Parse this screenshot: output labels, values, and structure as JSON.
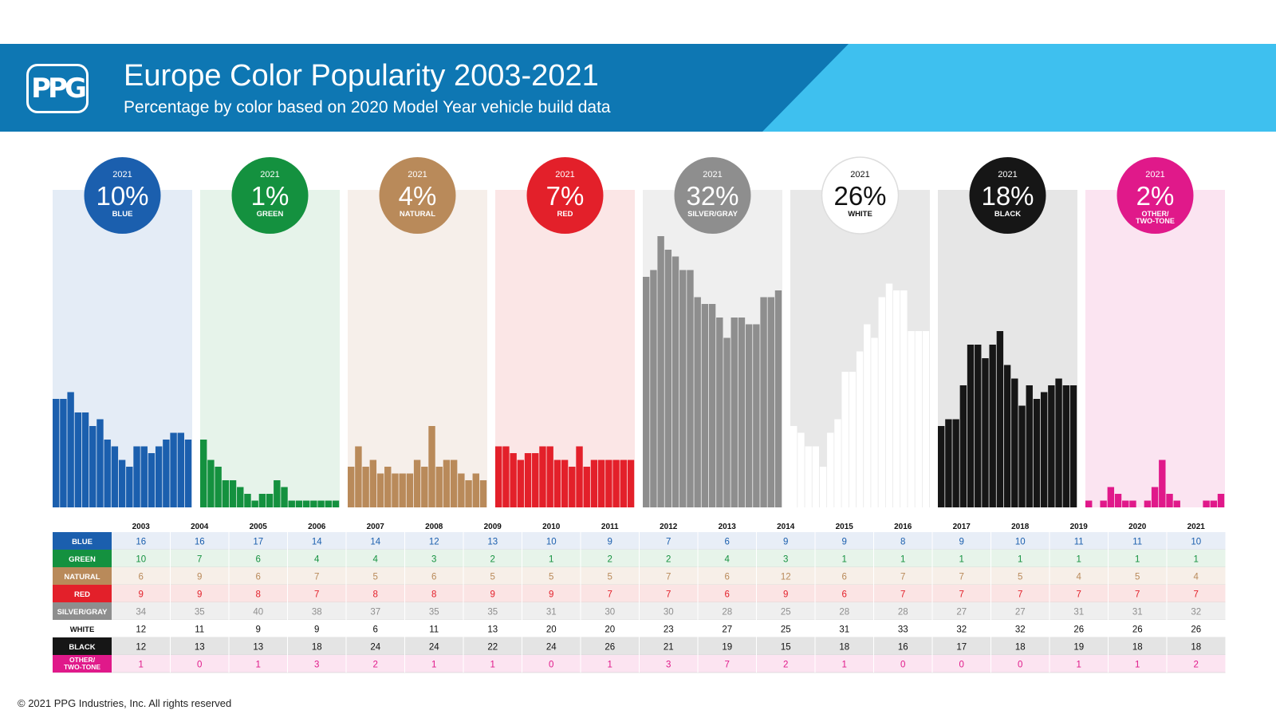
{
  "header": {
    "logo_text": "PPG",
    "title": "Europe Color Popularity 2003-2021",
    "subtitle": "Percentage by color based on 2020 Model Year vehicle build data"
  },
  "footer": {
    "copyright": "© 2021 PPG Industries, Inc. All rights reserved"
  },
  "colors": {
    "banner_dark": "#0e77b3",
    "banner_light": "#3ec0ef"
  },
  "chart_data": {
    "type": "bar",
    "title": "Europe Color Popularity 2003-2021",
    "subtitle": "Percentage by color based on 2020 Model Year vehicle build data",
    "categories": [
      "2003",
      "2004",
      "2005",
      "2006",
      "2007",
      "2008",
      "2009",
      "2010",
      "2011",
      "2012",
      "2013",
      "2014",
      "2015",
      "2016",
      "2017",
      "2018",
      "2019",
      "2020",
      "2021"
    ],
    "ylim": [
      0,
      40
    ],
    "series": [
      {
        "name": "BLUE",
        "badge_year": "2021",
        "badge_value": "10%",
        "badge_label": "BLUE",
        "color": "#1b5fae",
        "panel": "#e4ecf6",
        "text_color": "#1b5fae",
        "label_text_color": "#ffffff",
        "row_bg": "#e8eef7",
        "values": [
          16,
          16,
          17,
          14,
          14,
          12,
          13,
          10,
          9,
          7,
          6,
          9,
          9,
          8,
          9,
          10,
          11,
          11,
          10
        ]
      },
      {
        "name": "GREEN",
        "badge_year": "2021",
        "badge_value": "1%",
        "badge_label": "GREEN",
        "color": "#14913f",
        "panel": "#e6f3ea",
        "text_color": "#14913f",
        "label_text_color": "#ffffff",
        "row_bg": "#e7f4ea",
        "values": [
          10,
          7,
          6,
          4,
          4,
          3,
          2,
          1,
          2,
          2,
          4,
          3,
          1,
          1,
          1,
          1,
          1,
          1,
          1
        ]
      },
      {
        "name": "NATURAL",
        "badge_year": "2021",
        "badge_value": "4%",
        "badge_label": "NATURAL",
        "color": "#b98a5a",
        "panel": "#f6efea",
        "text_color": "#b98a5a",
        "label_text_color": "#ffffff",
        "row_bg": "#f7efe8",
        "values": [
          6,
          9,
          6,
          7,
          5,
          6,
          5,
          5,
          5,
          7,
          6,
          12,
          6,
          7,
          7,
          5,
          4,
          5,
          4
        ]
      },
      {
        "name": "RED",
        "badge_year": "2021",
        "badge_value": "7%",
        "badge_label": "RED",
        "color": "#e3202a",
        "panel": "#fbe6e6",
        "text_color": "#e3202a",
        "label_text_color": "#ffffff",
        "row_bg": "#fbe4e4",
        "values": [
          9,
          9,
          8,
          7,
          8,
          8,
          9,
          9,
          7,
          7,
          6,
          9,
          6,
          7,
          7,
          7,
          7,
          7,
          7
        ]
      },
      {
        "name": "SILVER/GRAY",
        "badge_year": "2021",
        "badge_value": "32%",
        "badge_label": "SILVER/GRAY",
        "color": "#8e8e8e",
        "panel": "#efefef",
        "text_color": "#8e8e8e",
        "label_text_color": "#ffffff",
        "row_bg": "#efefef",
        "values": [
          34,
          35,
          40,
          38,
          37,
          35,
          35,
          31,
          30,
          30,
          28,
          25,
          28,
          28,
          27,
          27,
          31,
          31,
          32
        ]
      },
      {
        "name": "WHITE",
        "badge_year": "2021",
        "badge_value": "26%",
        "badge_label": "WHITE",
        "color": "#ffffff",
        "panel": "#e8e8e8",
        "text_color": "#111111",
        "label_text_color": "#111111",
        "row_bg": "#ffffff",
        "values": [
          12,
          11,
          9,
          9,
          6,
          11,
          13,
          20,
          20,
          23,
          27,
          25,
          31,
          33,
          32,
          32,
          26,
          26,
          26
        ]
      },
      {
        "name": "BLACK",
        "badge_year": "2021",
        "badge_value": "18%",
        "badge_label": "BLACK",
        "color": "#161616",
        "panel": "#e6e6e6",
        "text_color": "#111111",
        "label_text_color": "#ffffff",
        "row_bg": "#e4e4e4",
        "values": [
          12,
          13,
          13,
          18,
          24,
          24,
          22,
          24,
          26,
          21,
          19,
          15,
          18,
          16,
          17,
          18,
          19,
          18,
          18
        ]
      },
      {
        "name": "OTHER/ TWO-TONE",
        "badge_year": "2021",
        "badge_value": "2%",
        "badge_label": "OTHER/ TWO-TONE",
        "color": "#e0198a",
        "panel": "#fbe4f1",
        "text_color": "#e0198a",
        "label_text_color": "#ffffff",
        "row_bg": "#fce4f1",
        "values": [
          1,
          0,
          1,
          3,
          2,
          1,
          1,
          0,
          1,
          3,
          7,
          2,
          1,
          0,
          0,
          0,
          1,
          1,
          2
        ]
      }
    ]
  }
}
